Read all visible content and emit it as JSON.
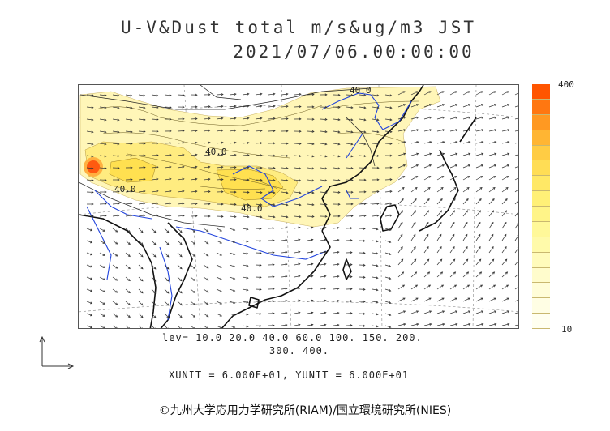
{
  "title_line1": "U-V&Dust total m/s&ug/m3 JST",
  "title_line2": "2021/07/06.00:00:00",
  "colorbar": {
    "max_label": "400",
    "min_label": "10",
    "colors": [
      "#ff5500",
      "#ff7711",
      "#ff9922",
      "#ffb533",
      "#ffcc44",
      "#ffdd55",
      "#ffe866",
      "#fff077",
      "#fff488",
      "#fff899",
      "#fffaaa",
      "#fffbbb",
      "#fffccc",
      "#fffdd8",
      "#fffee4",
      "#fffff0"
    ]
  },
  "contour_labels": [
    "40.0",
    "40.0",
    "40.0",
    "40.0"
  ],
  "levels_line1": "lev= 10.0 20.0 40.0 60.0 100. 150. 200.",
  "levels_line2": "300. 400.",
  "unit_line": "XUNIT = 6.000E+01, YUNIT = 6.000E+01",
  "copyright": "©九州大学応用力学研究所(RIAM)/国立環境研究所(NIES)",
  "colors": {
    "land_border": "#111111",
    "river": "#2244dd",
    "dust_low": "#fff4a8",
    "dust_mid": "#ffe45a",
    "dust_high": "#ff6a1a",
    "grid": "#777777"
  }
}
